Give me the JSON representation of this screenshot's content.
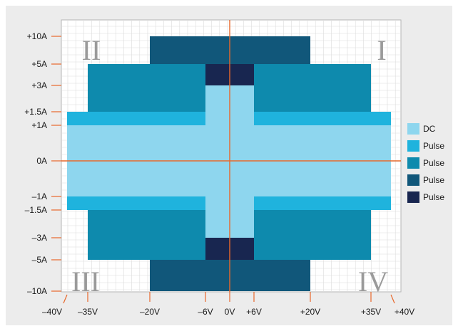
{
  "chart_data": {
    "type": "area",
    "title": "",
    "xlabel": "",
    "ylabel": "",
    "x_ticks": [
      {
        "value": -40,
        "label": "–40V"
      },
      {
        "value": -35,
        "label": "–35V"
      },
      {
        "value": -20,
        "label": "–20V"
      },
      {
        "value": -6,
        "label": "–6V"
      },
      {
        "value": 0,
        "label": "0V"
      },
      {
        "value": 6,
        "label": "+6V"
      },
      {
        "value": 20,
        "label": "+20V"
      },
      {
        "value": 35,
        "label": "+35V"
      },
      {
        "value": 40,
        "label": "+40V"
      }
    ],
    "y_ticks": [
      {
        "value": 10,
        "label": "+10A"
      },
      {
        "value": 5,
        "label": "+5A"
      },
      {
        "value": 3,
        "label": "+3A"
      },
      {
        "value": 1.5,
        "label": "+1.5A"
      },
      {
        "value": 1,
        "label": "+1A"
      },
      {
        "value": 0,
        "label": "0A"
      },
      {
        "value": -1,
        "label": "–1A"
      },
      {
        "value": -1.5,
        "label": "–1.5A"
      },
      {
        "value": -3,
        "label": "–3A"
      },
      {
        "value": -5,
        "label": "–5A"
      },
      {
        "value": -10,
        "label": "–10A"
      }
    ],
    "xlim": [
      -40,
      40
    ],
    "ylim": [
      -10,
      10
    ],
    "grid": true,
    "legend_position": "right",
    "quadrants": [
      "I",
      "II",
      "III",
      "IV"
    ],
    "series": [
      {
        "name": "DC",
        "color": "#8ed6ee",
        "regions": [
          {
            "x": [
              -40,
              40
            ],
            "y": [
              -1,
              1
            ]
          },
          {
            "x": [
              -6,
              6
            ],
            "y": [
              -3,
              3
            ]
          }
        ]
      },
      {
        "name": "Pulse",
        "color": "#1fb3dd",
        "regions": [
          {
            "x": [
              -40,
              -6
            ],
            "y": [
              1,
              1.5
            ]
          },
          {
            "x": [
              6,
              40
            ],
            "y": [
              1,
              1.5
            ]
          },
          {
            "x": [
              -40,
              -6
            ],
            "y": [
              -1.5,
              -1
            ]
          },
          {
            "x": [
              6,
              40
            ],
            "y": [
              -1.5,
              -1
            ]
          }
        ]
      },
      {
        "name": "Pulse",
        "color": "#0e8aad",
        "regions": [
          {
            "x": [
              -35,
              -6
            ],
            "y": [
              1.5,
              5
            ]
          },
          {
            "x": [
              6,
              35
            ],
            "y": [
              1.5,
              5
            ]
          },
          {
            "x": [
              -35,
              -6
            ],
            "y": [
              -5,
              -1.5
            ]
          },
          {
            "x": [
              6,
              35
            ],
            "y": [
              -5,
              -1.5
            ]
          }
        ]
      },
      {
        "name": "Pulse",
        "color": "#11577a",
        "regions": [
          {
            "x": [
              -20,
              20
            ],
            "y": [
              5,
              10
            ]
          },
          {
            "x": [
              -20,
              20
            ],
            "y": [
              -10,
              -5
            ]
          }
        ]
      },
      {
        "name": "Pulse",
        "color": "#182650",
        "regions": [
          {
            "x": [
              -6,
              6
            ],
            "y": [
              3,
              5
            ]
          },
          {
            "x": [
              -6,
              6
            ],
            "y": [
              -5,
              -3
            ]
          }
        ]
      }
    ]
  }
}
